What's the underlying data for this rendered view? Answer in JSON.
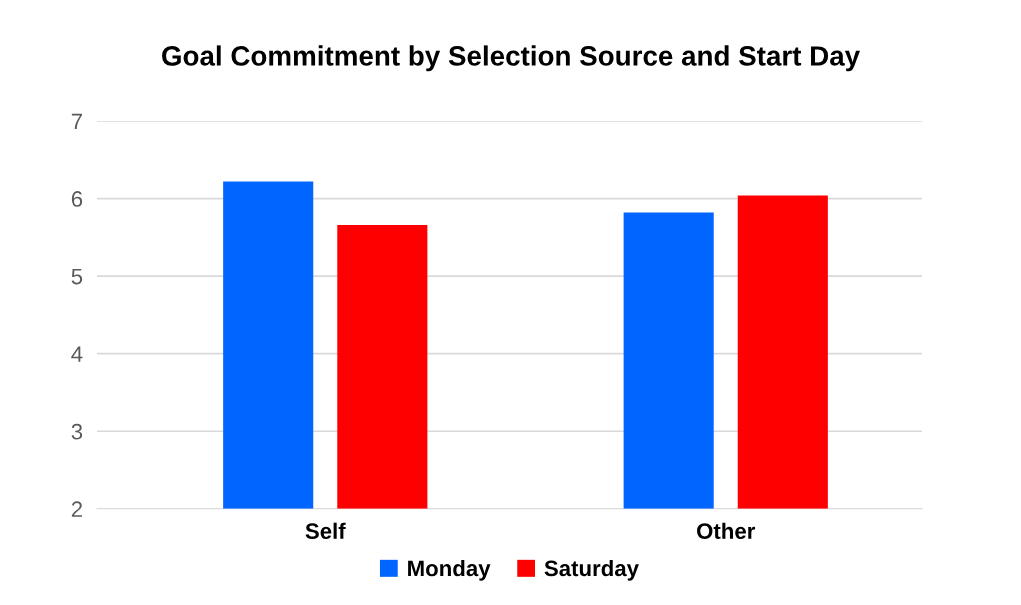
{
  "chart_data": {
    "type": "bar",
    "title": "Goal Commitment by Selection Source and Start Day",
    "categories": [
      "Self",
      "Other"
    ],
    "series": [
      {
        "name": "Monday",
        "color": "#0066ff",
        "values": [
          6.22,
          5.82
        ]
      },
      {
        "name": "Saturday",
        "color": "#ff0000",
        "values": [
          5.66,
          6.04
        ]
      }
    ],
    "ylim": [
      2,
      7
    ],
    "yticks": [
      2,
      3,
      4,
      5,
      6,
      7
    ],
    "grid": "y",
    "legend": "bottom"
  }
}
